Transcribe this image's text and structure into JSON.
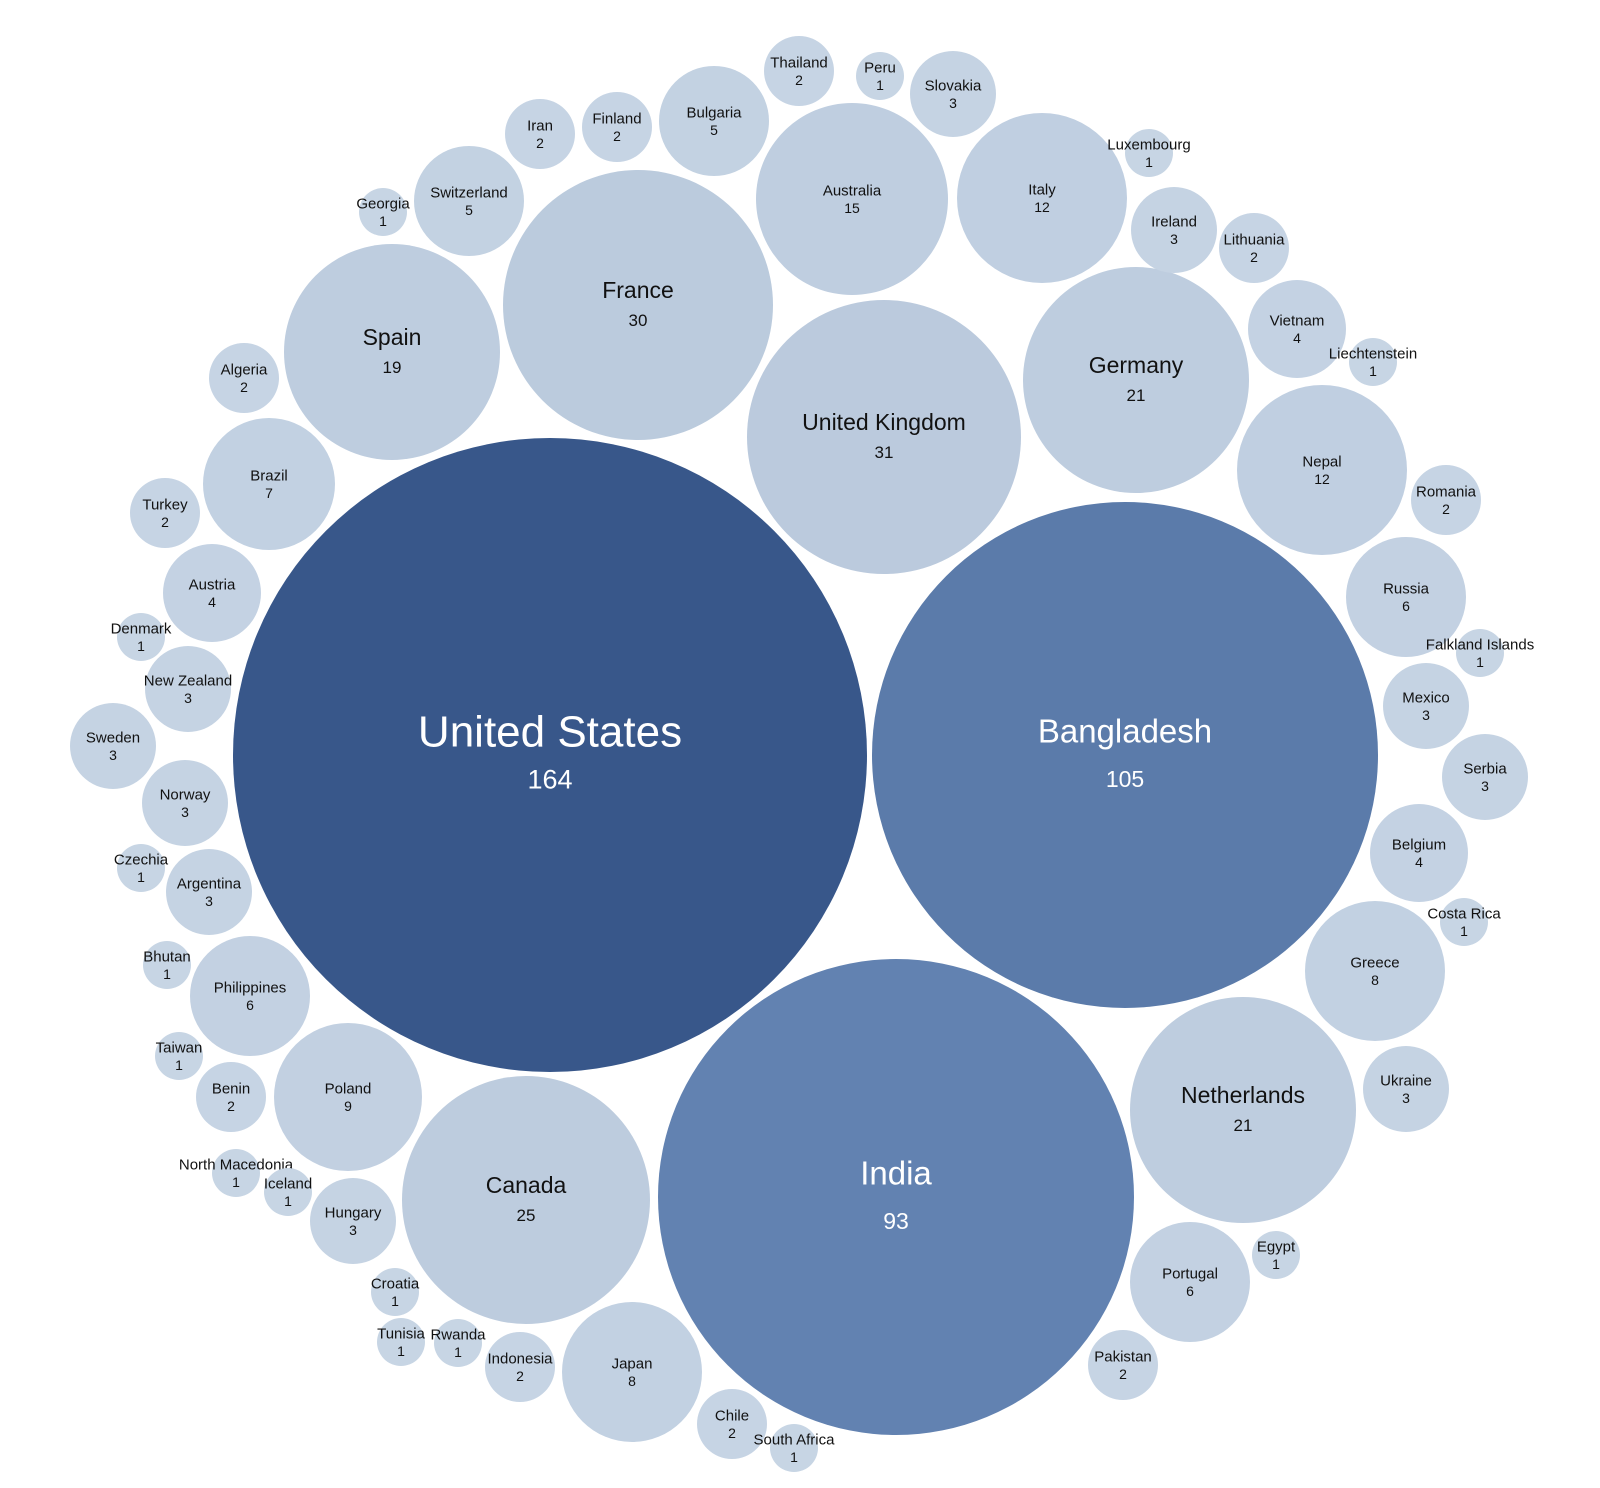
{
  "chart_data": {
    "type": "bubble",
    "title": "",
    "value_scale": {
      "min": 1,
      "max": 164
    },
    "colors": {
      "low": "#c9d7e6",
      "mid": "#6282b1",
      "high": "#38578a",
      "text_dark": "#111111",
      "text_light": "#ffffff"
    },
    "points": [
      {
        "name": "United States",
        "value": 164
      },
      {
        "name": "Bangladesh",
        "value": 105
      },
      {
        "name": "India",
        "value": 93
      },
      {
        "name": "United Kingdom",
        "value": 31
      },
      {
        "name": "France",
        "value": 30
      },
      {
        "name": "Canada",
        "value": 25
      },
      {
        "name": "Germany",
        "value": 21
      },
      {
        "name": "Netherlands",
        "value": 21
      },
      {
        "name": "Spain",
        "value": 19
      },
      {
        "name": "Australia",
        "value": 15
      },
      {
        "name": "Italy",
        "value": 12
      },
      {
        "name": "Nepal",
        "value": 12
      },
      {
        "name": "Poland",
        "value": 9
      },
      {
        "name": "Greece",
        "value": 8
      },
      {
        "name": "Japan",
        "value": 8
      },
      {
        "name": "Brazil",
        "value": 7
      },
      {
        "name": "Russia",
        "value": 6
      },
      {
        "name": "Philippines",
        "value": 6
      },
      {
        "name": "Portugal",
        "value": 6
      },
      {
        "name": "Bulgaria",
        "value": 5
      },
      {
        "name": "Switzerland",
        "value": 5
      },
      {
        "name": "Vietnam",
        "value": 4
      },
      {
        "name": "Austria",
        "value": 4
      },
      {
        "name": "Belgium",
        "value": 4
      },
      {
        "name": "Slovakia",
        "value": 3
      },
      {
        "name": "Ireland",
        "value": 3
      },
      {
        "name": "New Zealand",
        "value": 3
      },
      {
        "name": "Sweden",
        "value": 3
      },
      {
        "name": "Norway",
        "value": 3
      },
      {
        "name": "Argentina",
        "value": 3
      },
      {
        "name": "Mexico",
        "value": 3
      },
      {
        "name": "Serbia",
        "value": 3
      },
      {
        "name": "Ukraine",
        "value": 3
      },
      {
        "name": "Hungary",
        "value": 3
      },
      {
        "name": "Thailand",
        "value": 2
      },
      {
        "name": "Iran",
        "value": 2
      },
      {
        "name": "Finland",
        "value": 2
      },
      {
        "name": "Lithuania",
        "value": 2
      },
      {
        "name": "Algeria",
        "value": 2
      },
      {
        "name": "Turkey",
        "value": 2
      },
      {
        "name": "Romania",
        "value": 2
      },
      {
        "name": "Benin",
        "value": 2
      },
      {
        "name": "Indonesia",
        "value": 2
      },
      {
        "name": "Chile",
        "value": 2
      },
      {
        "name": "Pakistan",
        "value": 2
      },
      {
        "name": "Peru",
        "value": 1
      },
      {
        "name": "Luxembourg",
        "value": 1
      },
      {
        "name": "Georgia",
        "value": 1
      },
      {
        "name": "Liechtenstein",
        "value": 1
      },
      {
        "name": "Denmark",
        "value": 1
      },
      {
        "name": "Falkland Islands",
        "value": 1
      },
      {
        "name": "Czechia",
        "value": 1
      },
      {
        "name": "Bhutan",
        "value": 1
      },
      {
        "name": "Costa Rica",
        "value": 1
      },
      {
        "name": "Taiwan",
        "value": 1
      },
      {
        "name": "North Macedonia",
        "value": 1
      },
      {
        "name": "Iceland",
        "value": 1
      },
      {
        "name": "Croatia",
        "value": 1
      },
      {
        "name": "Tunisia",
        "value": 1
      },
      {
        "name": "Rwanda",
        "value": 1
      },
      {
        "name": "Egypt",
        "value": 1
      },
      {
        "name": "South Africa",
        "value": 1
      }
    ]
  }
}
